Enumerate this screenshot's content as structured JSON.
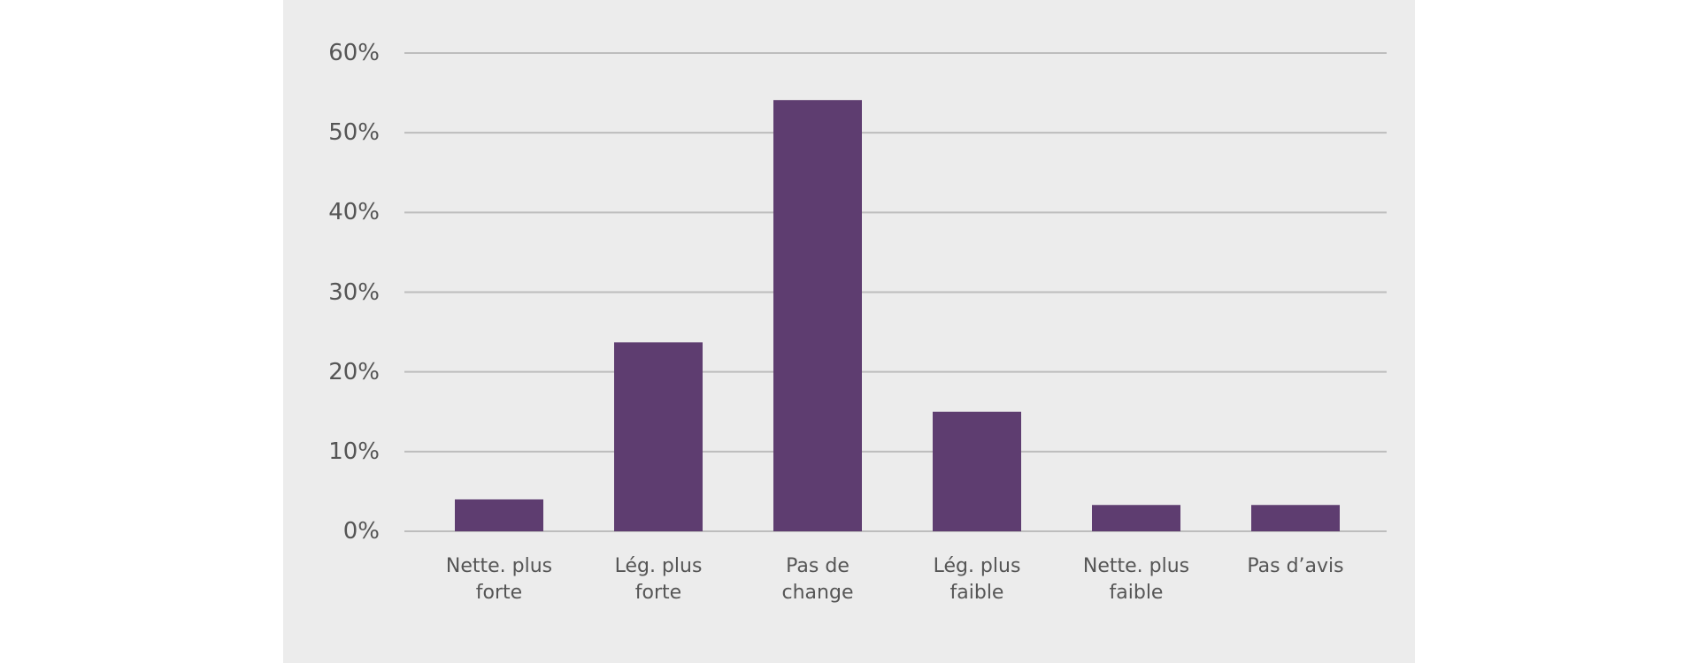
{
  "chart_data": {
    "type": "bar",
    "categories": [
      "Nette. plus\nforte",
      "Lég. plus\nforte",
      "Pas de\nchange",
      "Lég. plus\nfaible",
      "Nette. plus\nfaible",
      "Pas d’avis"
    ],
    "values": [
      4,
      23.7,
      54.1,
      15,
      3.3,
      3.3
    ],
    "color": "#5e3d70",
    "ylim": [
      0,
      60
    ],
    "yticks": [
      {
        "value": 0,
        "label": "0%"
      },
      {
        "value": 10,
        "label": "10%"
      },
      {
        "value": 20,
        "label": "20%"
      },
      {
        "value": 30,
        "label": "30%"
      },
      {
        "value": 40,
        "label": "40%"
      },
      {
        "value": 50,
        "label": "50%"
      },
      {
        "value": 60,
        "label": "60%"
      }
    ],
    "grid": true
  }
}
